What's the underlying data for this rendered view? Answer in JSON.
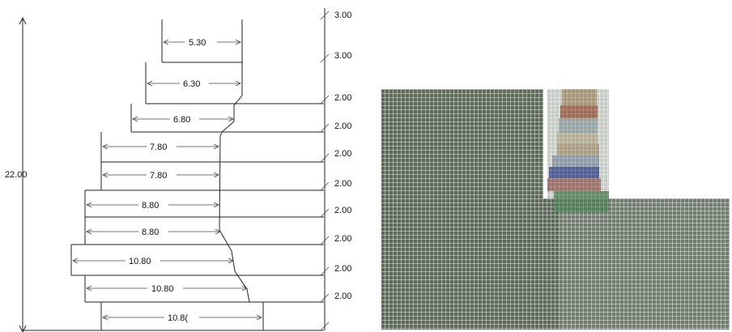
{
  "profile": {
    "total_height_label": "22.00",
    "layers": [
      {
        "width_label": "5.30",
        "height_label": "3.00"
      },
      {
        "width_label": "6.30",
        "height_label": "3.00"
      },
      {
        "width_label": "6.80",
        "height_label": "2.00"
      },
      {
        "width_label": "7.80",
        "height_label": "2.00"
      },
      {
        "width_label": "7.80",
        "height_label": "2.00"
      },
      {
        "width_label": "8.80",
        "height_label": "2.00"
      },
      {
        "width_label": "8.80",
        "height_label": "2.00"
      },
      {
        "width_label": "10.80",
        "height_label": "2.00"
      },
      {
        "width_label": "10.80",
        "height_label": "2.00"
      },
      {
        "width_label": "10.8(",
        "height_label": "2.00"
      }
    ]
  },
  "mesh": {
    "colors": {
      "grid_fill": "#5d6a5a",
      "grid_line": "#e8ece4",
      "layer_colors": [
        "#c9a07a",
        "#b0563c",
        "#a8b8c0",
        "#d7c7a8",
        "#c8a888",
        "#9aa8c8",
        "#2a3ea0",
        "#b06060",
        "#4e8a5a"
      ]
    }
  }
}
